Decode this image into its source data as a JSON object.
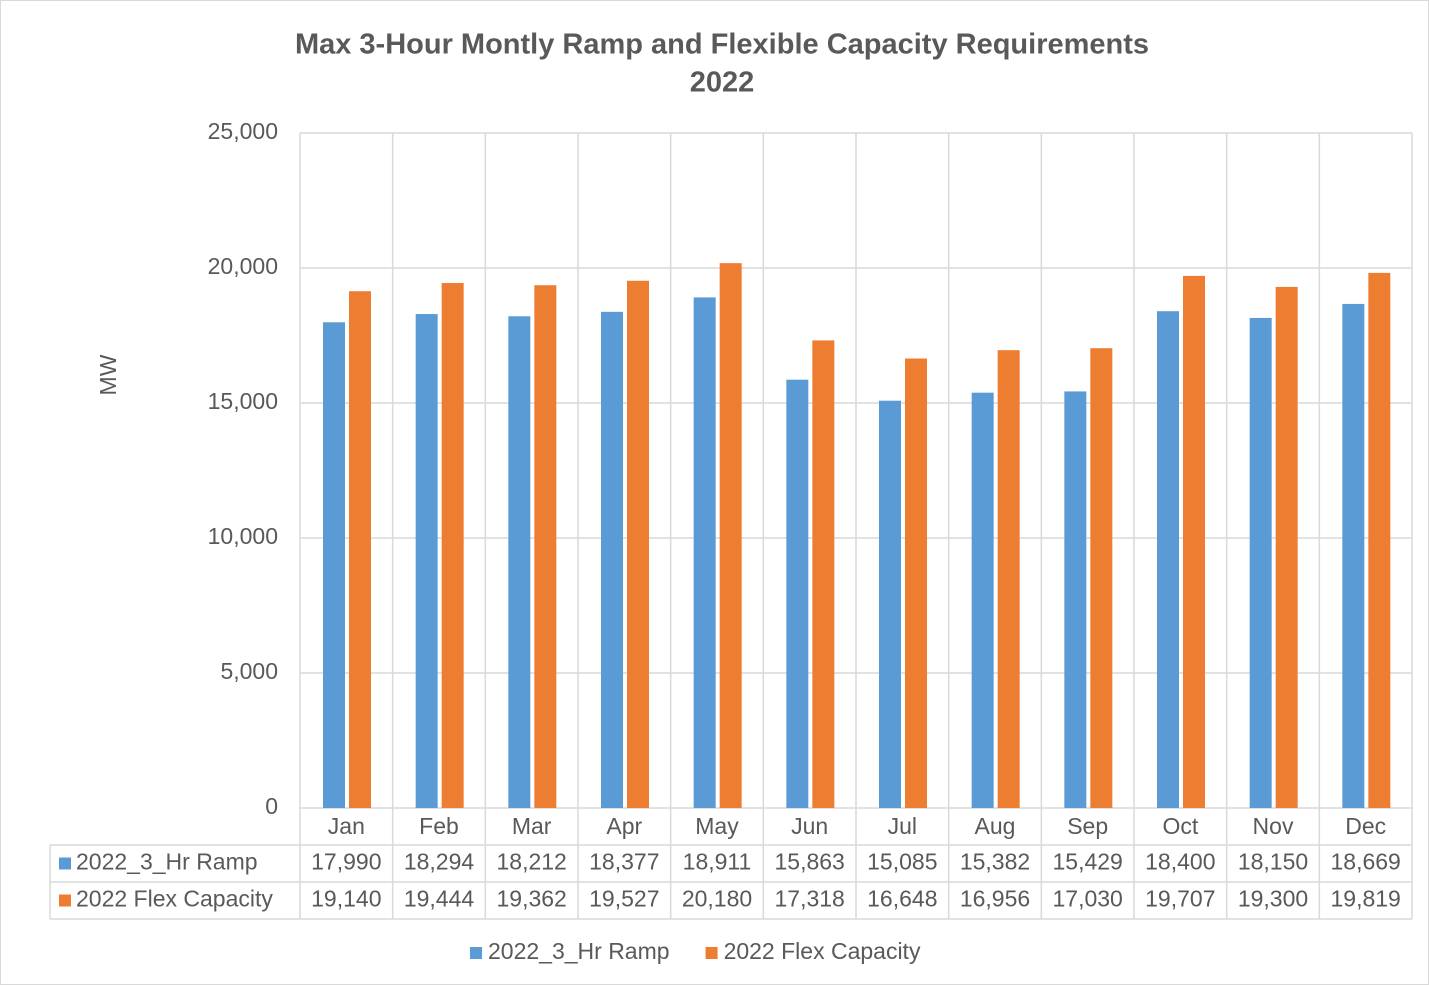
{
  "chart_data": {
    "type": "bar",
    "title": [
      "Max 3-Hour Montly Ramp and Flexible Capacity Requirements",
      "2022"
    ],
    "y_label": "MW",
    "categories": [
      "Jan",
      "Feb",
      "Mar",
      "Apr",
      "May",
      "Jun",
      "Jul",
      "Aug",
      "Sep",
      "Oct",
      "Nov",
      "Dec"
    ],
    "series": [
      {
        "name": "2022_3_Hr Ramp",
        "color": "#5b9bd5",
        "values": [
          17990,
          18294,
          18212,
          18377,
          18911,
          15863,
          15085,
          15382,
          15429,
          18400,
          18150,
          18669
        ],
        "value_labels": [
          "17,990",
          "18,294",
          "18,212",
          "18,377",
          "18,911",
          "15,863",
          "15,085",
          "15,382",
          "15,429",
          "18,400",
          "18,150",
          "18,669"
        ]
      },
      {
        "name": "2022 Flex Capacity",
        "color": "#ed7d31",
        "values": [
          19140,
          19444,
          19362,
          19527,
          20180,
          17318,
          16648,
          16956,
          17030,
          19707,
          19300,
          19819
        ],
        "value_labels": [
          "19,140",
          "19,444",
          "19,362",
          "19,527",
          "20,180",
          "17,318",
          "16,648",
          "16,956",
          "17,030",
          "19,707",
          "19,300",
          "19,819"
        ]
      }
    ],
    "ylim": [
      0,
      25000
    ],
    "yticks": [
      0,
      {
        "value": 5000,
        "label": "5,000"
      },
      {
        "value": 10000,
        "label": "10,000"
      },
      {
        "value": 15000,
        "label": "15,000"
      },
      {
        "value": 20000,
        "label": "20,000"
      },
      {
        "value": 25000,
        "label": "25,000"
      }
    ],
    "grid": true,
    "legend": "bottom"
  }
}
